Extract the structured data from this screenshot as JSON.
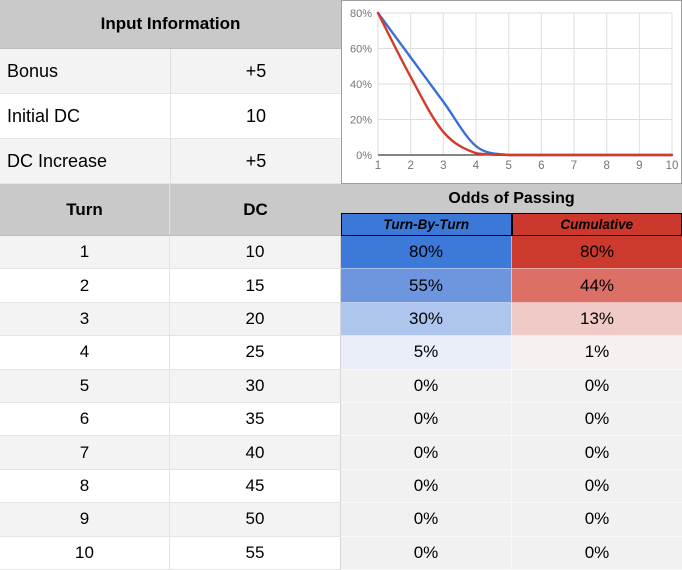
{
  "input_info": {
    "title": "Input Information",
    "rows": [
      {
        "label": "Bonus",
        "value": "+5"
      },
      {
        "label": "Initial DC",
        "value": "10"
      },
      {
        "label": "DC Increase",
        "value": "+5"
      }
    ]
  },
  "table": {
    "turn_header": "Turn",
    "dc_header": "DC",
    "odds_title": "Odds of Passing",
    "col1": "Turn-By-Turn",
    "col2": "Cumulative",
    "rows": [
      {
        "turn": "1",
        "dc": "10",
        "tbt": "80%",
        "cum": "80%",
        "tbt_bg": "#3d79d8",
        "cum_bg": "#cc3a2d"
      },
      {
        "turn": "2",
        "dc": "15",
        "tbt": "55%",
        "cum": "44%",
        "tbt_bg": "#6d96de",
        "cum_bg": "#dc6f66"
      },
      {
        "turn": "3",
        "dc": "20",
        "tbt": "30%",
        "cum": "13%",
        "tbt_bg": "#aec5ed",
        "cum_bg": "#f0cac7"
      },
      {
        "turn": "4",
        "dc": "25",
        "tbt": "5%",
        "cum": "1%",
        "tbt_bg": "#e9eef9",
        "cum_bg": "#f6f0ef"
      },
      {
        "turn": "5",
        "dc": "30",
        "tbt": "0%",
        "cum": "0%",
        "tbt_bg": "#f1f1f1",
        "cum_bg": "#f1f1f1"
      },
      {
        "turn": "6",
        "dc": "35",
        "tbt": "0%",
        "cum": "0%",
        "tbt_bg": "#f1f1f1",
        "cum_bg": "#f1f1f1"
      },
      {
        "turn": "7",
        "dc": "40",
        "tbt": "0%",
        "cum": "0%",
        "tbt_bg": "#f1f1f1",
        "cum_bg": "#f1f1f1"
      },
      {
        "turn": "8",
        "dc": "45",
        "tbt": "0%",
        "cum": "0%",
        "tbt_bg": "#f1f1f1",
        "cum_bg": "#f1f1f1"
      },
      {
        "turn": "9",
        "dc": "50",
        "tbt": "0%",
        "cum": "0%",
        "tbt_bg": "#f1f1f1",
        "cum_bg": "#f1f1f1"
      },
      {
        "turn": "10",
        "dc": "55",
        "tbt": "0%",
        "cum": "0%",
        "tbt_bg": "#f1f1f1",
        "cum_bg": "#f1f1f1"
      }
    ]
  },
  "chart_data": {
    "type": "line",
    "x": [
      1,
      2,
      3,
      4,
      5,
      6,
      7,
      8,
      9,
      10
    ],
    "series": [
      {
        "name": "Turn-By-Turn",
        "color": "#3b6fd6",
        "values": [
          80,
          55,
          30,
          5,
          0,
          0,
          0,
          0,
          0,
          0
        ]
      },
      {
        "name": "Cumulative",
        "color": "#d43a2a",
        "values": [
          80,
          44,
          13,
          1,
          0,
          0,
          0,
          0,
          0,
          0
        ]
      }
    ],
    "xticks": [
      "1",
      "2",
      "3",
      "4",
      "5",
      "6",
      "7",
      "8",
      "9",
      "10"
    ],
    "yticks": [
      "0%",
      "20%",
      "40%",
      "60%",
      "80%"
    ],
    "ytick_values": [
      0,
      20,
      40,
      60,
      80
    ],
    "ylim": [
      0,
      80
    ],
    "xlim": [
      1,
      10
    ],
    "grid": true,
    "legend": "none",
    "title": "",
    "xlabel": "",
    "ylabel": "",
    "axis_label_color": "#757575",
    "gridline_color": "#dedede",
    "axis_line_color": "#3c3c3c"
  },
  "colors": {
    "header_gray": "#c9c9c9",
    "band_gray": "#f3f3f3",
    "blue_header": "#3c78d8",
    "red_header": "#cc382c"
  }
}
